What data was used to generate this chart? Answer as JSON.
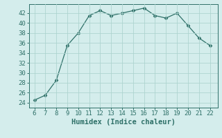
{
  "x": [
    6,
    7,
    8,
    9,
    10,
    11,
    12,
    13,
    14,
    15,
    16,
    17,
    18,
    19,
    20,
    21,
    22
  ],
  "y": [
    24.5,
    25.5,
    28.5,
    35.5,
    38,
    41.5,
    42.5,
    41.5,
    42,
    42.5,
    43,
    41.5,
    41,
    42,
    39.5,
    37,
    35.5
  ],
  "line_color": "#2e7068",
  "marker": "D",
  "marker_size": 2.5,
  "bg_color": "#d4edec",
  "grid_color": "#aed4d0",
  "xlabel": "Humidex (Indice chaleur)",
  "xlabel_fontsize": 7.5,
  "yticks": [
    24,
    26,
    28,
    30,
    32,
    34,
    36,
    38,
    40,
    42
  ],
  "xticks": [
    6,
    7,
    8,
    9,
    10,
    11,
    12,
    13,
    14,
    15,
    16,
    17,
    18,
    19,
    20,
    21,
    22
  ],
  "ylim": [
    23.0,
    43.8
  ],
  "xlim": [
    5.5,
    22.7
  ],
  "tick_fontsize": 6.5,
  "tick_color": "#2e7068"
}
